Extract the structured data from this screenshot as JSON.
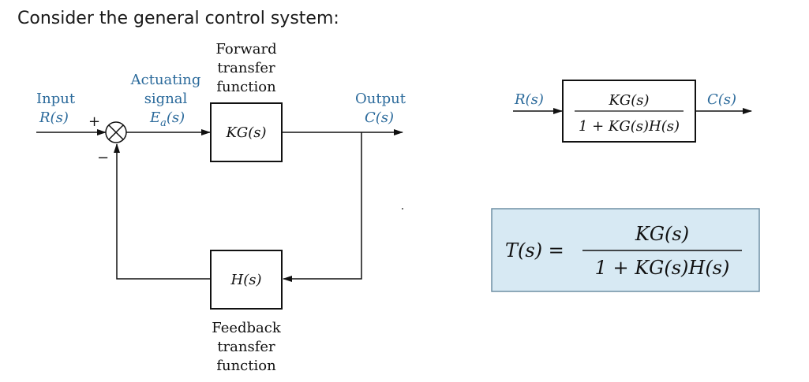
{
  "heading": "Consider the general control system:",
  "diagram": {
    "forward_label": [
      "Forward",
      "transfer",
      "function"
    ],
    "actuating_label": [
      "Actuating",
      "signal"
    ],
    "actuating_signal": "Ea(s)",
    "input_label": [
      "Input",
      "R(s)"
    ],
    "output_label": [
      "Output",
      "C(s)"
    ],
    "forward_block": "KG(s)",
    "feedback_block": "H(s)",
    "feedback_label": [
      "Feedback",
      "transfer",
      "function"
    ],
    "plus_sign": "+",
    "minus_sign": "−"
  },
  "reduced": {
    "input": "R(s)",
    "output": "C(s)",
    "numerator": "KG(s)",
    "denominator": "1 + KG(s)H(s)"
  },
  "formula": {
    "lhs": "T(s) =",
    "numerator": "KG(s)",
    "denominator": "1 + KG(s)H(s)",
    "box_color": "#d7e9f3",
    "border_color": "#6f8fa4"
  }
}
